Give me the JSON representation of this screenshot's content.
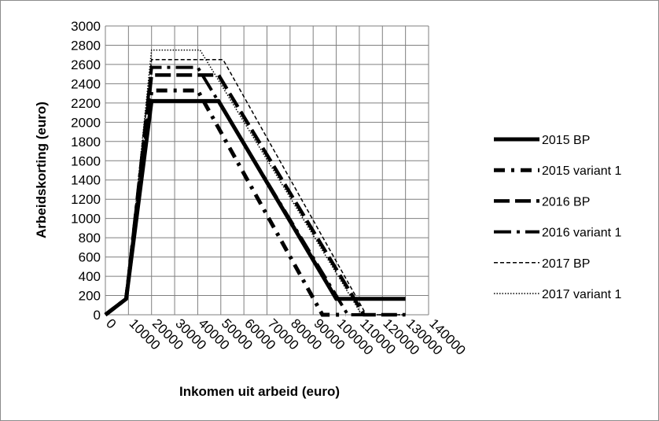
{
  "chart_data": {
    "type": "line",
    "xlabel": "Inkomen uit arbeid (euro)",
    "ylabel": "Arbeidskorting (euro)",
    "x_ticks": [
      0,
      10000,
      20000,
      30000,
      40000,
      50000,
      60000,
      70000,
      80000,
      90000,
      100000,
      110000,
      120000,
      130000,
      140000
    ],
    "y_ticks": [
      0,
      200,
      400,
      600,
      800,
      1000,
      1200,
      1400,
      1600,
      1800,
      2000,
      2200,
      2400,
      2600,
      2800,
      3000
    ],
    "xlim": [
      0,
      140000
    ],
    "ylim": [
      0,
      3000
    ],
    "grid": true,
    "legend_position": "right",
    "series": [
      {
        "name": "2015 BP",
        "style": "solid",
        "color": "#000000",
        "points": [
          [
            0,
            0
          ],
          [
            9000,
            165
          ],
          [
            20000,
            2220
          ],
          [
            49000,
            2220
          ],
          [
            100000,
            165
          ],
          [
            130000,
            165
          ]
        ]
      },
      {
        "name": "2015 variant 1",
        "style": "dashdot",
        "color": "#000000",
        "points": [
          [
            0,
            0
          ],
          [
            9000,
            165
          ],
          [
            20000,
            2330
          ],
          [
            40000,
            2330
          ],
          [
            94000,
            0
          ],
          [
            104000,
            0
          ]
        ]
      },
      {
        "name": "2016 BP",
        "style": "longdash",
        "color": "#000000",
        "points": [
          [
            0,
            0
          ],
          [
            9000,
            165
          ],
          [
            20000,
            2490
          ],
          [
            49000,
            2490
          ],
          [
            112000,
            0
          ],
          [
            130000,
            0
          ]
        ]
      },
      {
        "name": "2016 variant 1",
        "style": "longdashdot",
        "color": "#000000",
        "points": [
          [
            0,
            0
          ],
          [
            9000,
            165
          ],
          [
            20000,
            2570
          ],
          [
            40000,
            2570
          ],
          [
            105000,
            0
          ],
          [
            112000,
            0
          ]
        ]
      },
      {
        "name": "2017 BP",
        "style": "dashed",
        "color": "#000000",
        "points": [
          [
            0,
            0
          ],
          [
            9000,
            165
          ],
          [
            20000,
            2650
          ],
          [
            51000,
            2650
          ],
          [
            113000,
            0
          ],
          [
            130000,
            0
          ]
        ]
      },
      {
        "name": "2017 variant 1",
        "style": "dotted",
        "color": "#000000",
        "points": [
          [
            0,
            0
          ],
          [
            9000,
            165
          ],
          [
            20000,
            2750
          ],
          [
            41000,
            2750
          ],
          [
            111000,
            0
          ],
          [
            130000,
            0
          ]
        ]
      }
    ]
  }
}
